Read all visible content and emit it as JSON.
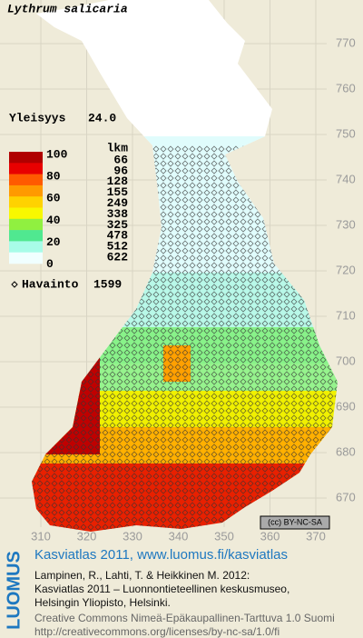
{
  "title": "Lythrum salicaria",
  "frequency_label": "Yleisyys",
  "frequency": "24.0",
  "legend": {
    "scale_labels": [
      100,
      80,
      60,
      40,
      20,
      0
    ],
    "colors": [
      "#b00000",
      "#e80000",
      "#ff5a00",
      "#ff9a00",
      "#ffd200",
      "#f8f800",
      "#90f040",
      "#50e890",
      "#a8fce8",
      "#f0ffff"
    ],
    "count_header": "lkm",
    "counts": [
      66,
      96,
      128,
      155,
      249,
      338,
      325,
      478,
      512,
      622
    ]
  },
  "observations": {
    "label": "Havainto",
    "count": 1599
  },
  "map": {
    "northing": [
      770,
      760,
      750,
      740,
      730,
      720,
      710,
      700,
      690,
      680,
      670
    ],
    "easting": [
      310,
      320,
      330,
      340,
      350,
      360,
      370
    ]
  },
  "footer": {
    "badge": "(cc) BY-NC-SA",
    "logo": "LUOMUS",
    "atlas": "Kasviatlas 2011, www.luomus.fi/kasviatlas",
    "citation": [
      "Lampinen, R., Lahti, T. & Heikkinen M. 2012:",
      "Kasviatlas 2011 – Luonnontieteellinen keskusmuseo,",
      "Helsingin Yliopisto, Helsinki."
    ],
    "license": [
      "Creative Commons Nimeä-Epäkaupallinen-Tarttuva 1.0 Suomi",
      "http://creativecommons.org/licenses/by-nc-sa/1.0/fi"
    ]
  }
}
